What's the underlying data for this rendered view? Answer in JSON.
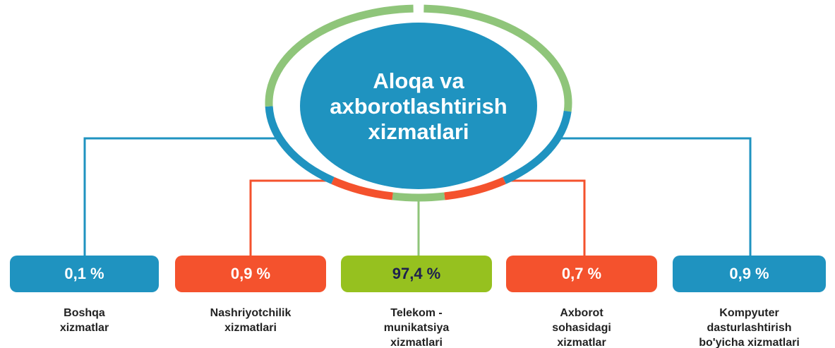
{
  "center": {
    "lines": [
      "Aloqa va",
      "axborotlashtirish",
      "xizmatlari"
    ],
    "color": "#1f93c0"
  },
  "nodes": [
    {
      "value": "0,1 %",
      "label": [
        "Boshqa",
        "xizmatlar"
      ],
      "color": "#1f93c0"
    },
    {
      "value": "0,9 %",
      "label": [
        "Nashriyotchilik",
        "xizmatlari"
      ],
      "color": "#f4522d"
    },
    {
      "value": "97,4 %",
      "label": [
        "Telekom -",
        "munikatsiya",
        "xizmatlari"
      ],
      "color": "#96c11f"
    },
    {
      "value": "0,7 %",
      "label": [
        "Axborot",
        "sohasidagi",
        "xizmatlar"
      ],
      "color": "#f4522d"
    },
    {
      "value": "0,9 %",
      "label": [
        "Kompyuter",
        "dasturlashtirish",
        "bo'yicha xizmatlari"
      ],
      "color": "#1f93c0"
    }
  ]
}
